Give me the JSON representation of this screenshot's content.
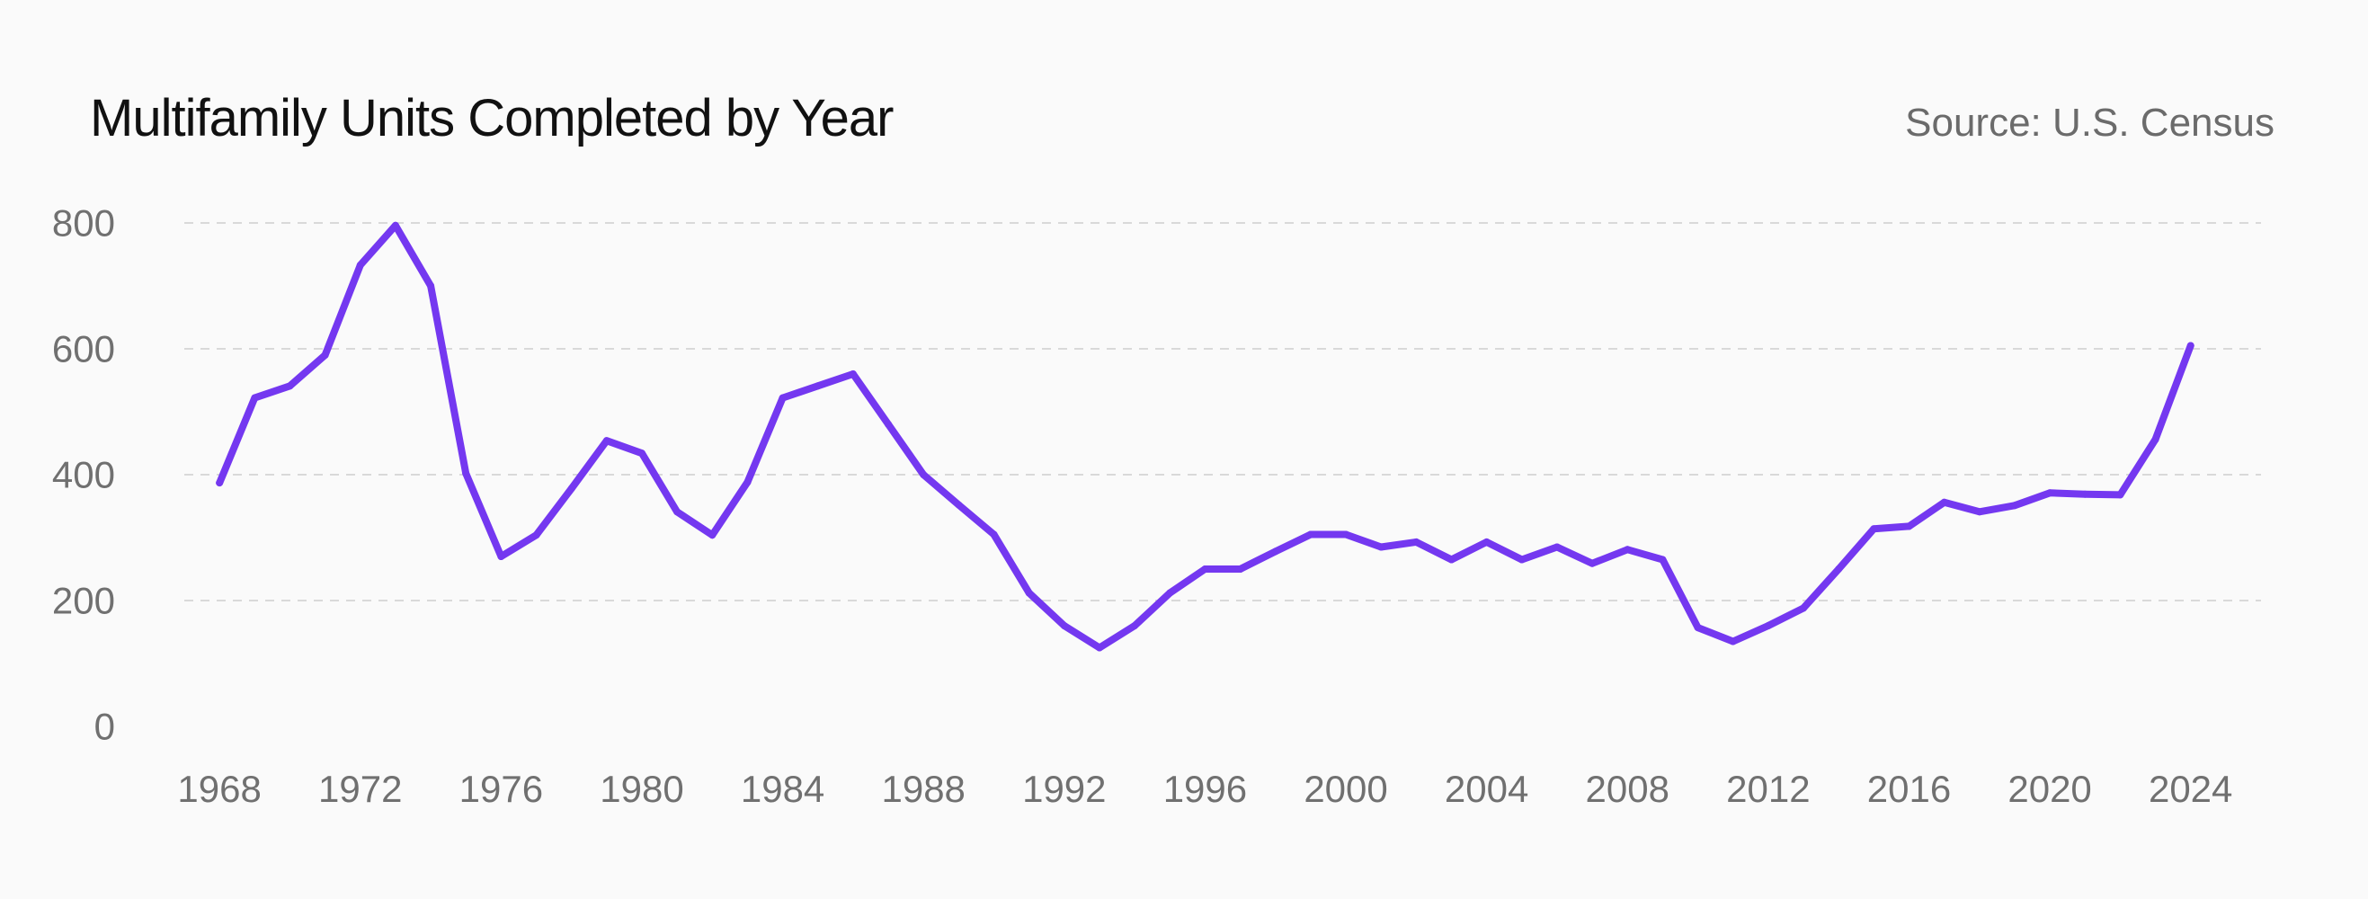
{
  "header": {
    "title": "Multifamily Units Completed by Year",
    "source": "Source: U.S. Census"
  },
  "colors": {
    "line": "#7438f0",
    "background": "#fafafa"
  },
  "chart_data": {
    "type": "line",
    "title": "Multifamily Units Completed by Year",
    "xlabel": "",
    "ylabel": "",
    "xlim": [
      1967,
      2026
    ],
    "ylim": [
      0,
      800
    ],
    "yticks": [
      0,
      200,
      400,
      600,
      800
    ],
    "xticks": [
      1968,
      1972,
      1976,
      1980,
      1984,
      1988,
      1992,
      1996,
      2000,
      2004,
      2008,
      2012,
      2016,
      2020,
      2024
    ],
    "grid": true,
    "x": [
      1968,
      1969,
      1970,
      1971,
      1972,
      1973,
      1974,
      1975,
      1976,
      1977,
      1978,
      1979,
      1980,
      1981,
      1982,
      1983,
      1984,
      1985,
      1986,
      1987,
      1988,
      1989,
      1990,
      1991,
      1992,
      1993,
      1994,
      1995,
      1996,
      1997,
      1998,
      1999,
      2000,
      2001,
      2002,
      2003,
      2004,
      2005,
      2006,
      2007,
      2008,
      2009,
      2010,
      2011,
      2012,
      2013,
      2014,
      2015,
      2016,
      2017,
      2018,
      2019,
      2020,
      2021,
      2022,
      2023,
      2024
    ],
    "series": [
      {
        "values": [
          387,
          522,
          541,
          590,
          733,
          796,
          700,
          402,
          270,
          304,
          378,
          454,
          434,
          341,
          304,
          388,
          522,
          541,
          560,
          480,
          400,
          352,
          305,
          212,
          160,
          125,
          160,
          212,
          250,
          250,
          278,
          305,
          305,
          285,
          293,
          265,
          293,
          265,
          285,
          259,
          281,
          265,
          157,
          135,
          160,
          188,
          250,
          314,
          318,
          356,
          341,
          351,
          371,
          369,
          368,
          456,
          605
        ]
      }
    ]
  }
}
